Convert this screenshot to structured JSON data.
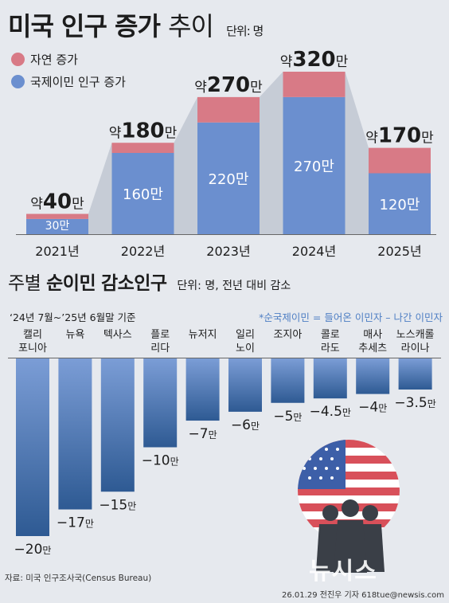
{
  "title": {
    "bold": "미국 인구",
    "bold2": "증가",
    "thin": "추이",
    "unit": "단위: 명"
  },
  "legend": [
    {
      "label": "자연 증가",
      "color": "#d87a86"
    },
    {
      "label": "국제이민 인구 증가",
      "color": "#6b8fcf"
    }
  ],
  "section2": {
    "title_pre": "주별",
    "title_bold": "순이민",
    "title_post": "감소인구",
    "unit": "단위: 명, 전년 대비 감소",
    "period": "‘24년 7월~’25년 6월말 기준",
    "note": "*순국제이민 = 들어온 이민자 – 나간 이민자"
  },
  "chart_data": [
    {
      "type": "bar",
      "stacked": true,
      "categories": [
        "2021년",
        "2022년",
        "2023년",
        "2024년",
        "2025년"
      ],
      "series": [
        {
          "name": "국제이민 인구 증가",
          "values": [
            300000,
            1600000,
            2200000,
            2700000,
            1200000
          ]
        },
        {
          "name": "자연 증가",
          "values": [
            100000,
            200000,
            500000,
            500000,
            500000
          ]
        }
      ],
      "totals": [
        400000,
        1800000,
        2700000,
        3200000,
        1700000
      ],
      "total_labels": [
        {
          "pre": "약",
          "num": "40",
          "suf": "만"
        },
        {
          "pre": "약",
          "num": "180",
          "suf": "만"
        },
        {
          "pre": "약",
          "num": "270",
          "suf": "만"
        },
        {
          "pre": "약",
          "num": "320",
          "suf": "만"
        },
        {
          "pre": "약",
          "num": "170",
          "suf": "만"
        }
      ],
      "segment_labels": [
        "30만",
        "160만",
        "220만",
        "270만",
        "120만"
      ],
      "ylim": [
        0,
        3200000
      ]
    },
    {
      "type": "bar",
      "orientation": "downward",
      "categories": [
        [
          "캘리",
          "포니아"
        ],
        [
          "뉴욕"
        ],
        [
          "텍사스"
        ],
        [
          "플로",
          "리다"
        ],
        [
          "뉴저지"
        ],
        [
          "일리",
          "노이"
        ],
        [
          "조지아"
        ],
        [
          "콜로",
          "라도"
        ],
        [
          "매사",
          "추세츠"
        ],
        [
          "노스캐롤",
          "라이나"
        ]
      ],
      "values": [
        -200000,
        -170000,
        -150000,
        -100000,
        -70000,
        -60000,
        -50000,
        -45000,
        -40000,
        -35000
      ],
      "value_labels": [
        {
          "num": "−20",
          "suf": "만"
        },
        {
          "num": "−17",
          "suf": "만"
        },
        {
          "num": "−15",
          "suf": "만"
        },
        {
          "num": "−10",
          "suf": "만"
        },
        {
          "num": "−7",
          "suf": "만"
        },
        {
          "num": "−6",
          "suf": "만"
        },
        {
          "num": "−5",
          "suf": "만"
        },
        {
          "num": "−4.5",
          "suf": "만"
        },
        {
          "num": "−4",
          "suf": "만"
        },
        {
          "num": "−3.5",
          "suf": "만"
        }
      ],
      "ylim": [
        -200000,
        0
      ]
    }
  ],
  "footer": {
    "source": "자료: 미국 인구조사국(Census Bureau)",
    "credit": "26.01.29 전진우 기자 618tue@newsis.com",
    "logo": "뉴시스"
  },
  "colors": {
    "blue_top": "#7b9dd6",
    "blue_bottom": "#2e5a93",
    "pink": "#d87a86",
    "trapezoid": "#c6ccd6"
  }
}
